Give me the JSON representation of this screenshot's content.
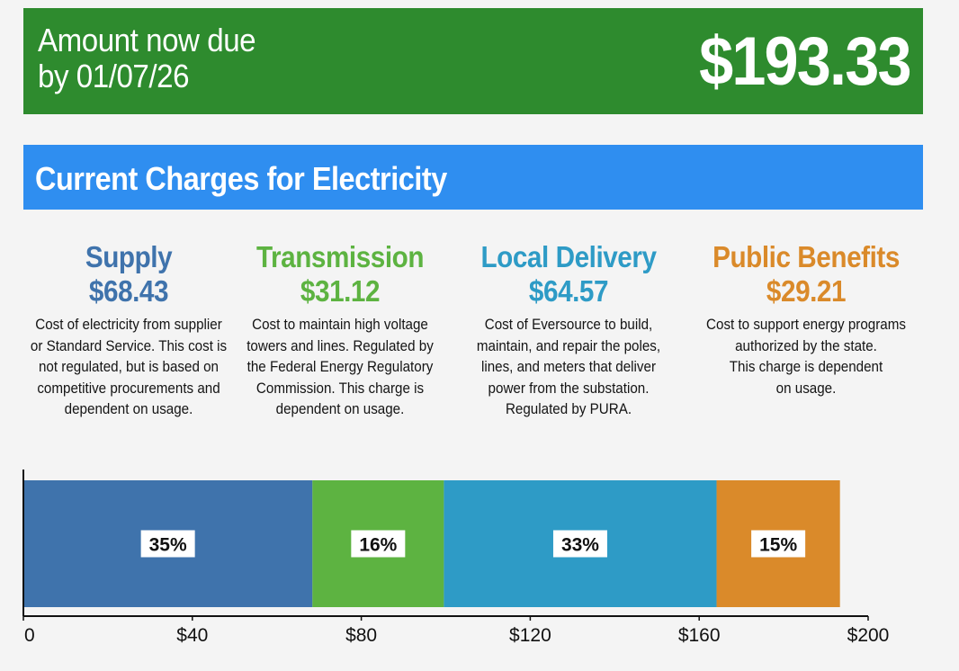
{
  "due": {
    "label_line1": "Amount now due",
    "label_line2": "by 01/07/26",
    "amount": "$193.33"
  },
  "charges": {
    "title": "Current Charges for Electricity",
    "categories": [
      {
        "name": "Supply",
        "amount": "$68.43",
        "color": "#3f73ac",
        "description": [
          "Cost of electricity from supplier",
          "or Standard Service. This cost is",
          "not regulated, but is based on",
          "competitive procurements and",
          "dependent on usage."
        ]
      },
      {
        "name": "Transmission",
        "amount": "$31.12",
        "color": "#5db341",
        "description": [
          "Cost to maintain high voltage",
          "towers and lines. Regulated by",
          "the Federal Energy Regulatory",
          "Commission. This charge is",
          "dependent on usage."
        ]
      },
      {
        "name": "Local Delivery",
        "amount": "$64.57",
        "color": "#2e9bc6",
        "description": [
          "Cost of Eversource to build,",
          "maintain, and repair the poles,",
          "lines, and meters that deliver",
          "power from the substation.",
          "Regulated by PURA."
        ]
      },
      {
        "name": "Public Benefits",
        "amount": "$29.21",
        "color": "#da8a2a",
        "description": [
          "Cost to support energy programs",
          "authorized by the state.",
          "This charge is dependent",
          "on usage."
        ]
      }
    ]
  },
  "chart_data": {
    "type": "bar",
    "orientation": "horizontal-stacked",
    "title": "",
    "xlabel": "",
    "ylabel": "",
    "xlim": [
      0,
      200
    ],
    "xticks": [
      0,
      40,
      80,
      120,
      160,
      200
    ],
    "tick_labels": [
      "0",
      "$40",
      "$80",
      "$120",
      "$160",
      "$200"
    ],
    "series": [
      {
        "name": "Supply",
        "value": 68.43,
        "label": "35%",
        "color": "#3f73ac"
      },
      {
        "name": "Transmission",
        "value": 31.12,
        "label": "16%",
        "color": "#5db341"
      },
      {
        "name": "Local Delivery",
        "value": 64.57,
        "label": "33%",
        "color": "#2e9bc6"
      },
      {
        "name": "Public Benefits",
        "value": 29.21,
        "label": "15%",
        "color": "#da8a2a"
      }
    ]
  }
}
